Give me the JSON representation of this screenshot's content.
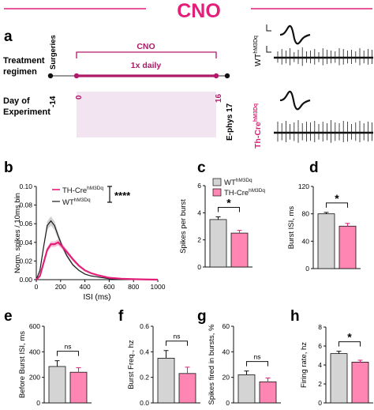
{
  "header": {
    "title": "CNO"
  },
  "colors": {
    "cno": "#e21f79",
    "cno_dark": "#b01869",
    "bar_gray": "#d4d4d4",
    "bar_pink": "#ff86b3",
    "shade": "#f3e4f1",
    "wt_line": "#1a1a1a",
    "th_line": "#e21f79",
    "trace": "#1a1a1a"
  },
  "panel_a": {
    "letter": "a",
    "treatment_label_1": "Treatment",
    "treatment_label_2": "regimen",
    "day_label_1": "Day of",
    "day_label_2": "Experiment",
    "surgeries": "Surgeries",
    "cno_label_1": "CNO",
    "cno_label_2": "1x daily",
    "day_minus14": "-14",
    "day_0": "0",
    "day_16": "16",
    "ephys": "E-phys 17",
    "wt_genotype": "WT",
    "th_genotype": "Th-Cre",
    "superscript": "hM3Dq"
  },
  "chart_data": [
    {
      "panel": "b",
      "type": "line",
      "xlabel": "ISI (ms)",
      "ylabel": "Norm. spikes / 10ms bin",
      "xlim": [
        0,
        1000
      ],
      "ylim": [
        0,
        0.1
      ],
      "xticks": [
        "0",
        "200",
        "400",
        "600",
        "800",
        "1000"
      ],
      "yticks": [
        "0.00",
        "0.02",
        "0.04",
        "0.06",
        "0.08",
        "0.10"
      ],
      "significance": "****",
      "legend": [
        {
          "base": "TH-Cre",
          "sup": "hM3Dq"
        },
        {
          "base": "WT",
          "sup": "hM3Dq"
        }
      ],
      "legend_position": "top-right",
      "series": [
        {
          "name": "TH-Cre hM3Dq",
          "x": [
            0,
            30,
            60,
            90,
            120,
            150,
            180,
            210,
            250,
            300,
            350,
            400,
            450,
            500,
            600,
            700,
            800,
            900,
            1000
          ],
          "y": [
            0.0,
            0.004,
            0.018,
            0.032,
            0.038,
            0.038,
            0.04,
            0.036,
            0.03,
            0.022,
            0.015,
            0.01,
            0.007,
            0.005,
            0.002,
            0.001,
            0.0005,
            0.0002,
            0.0
          ]
        },
        {
          "name": "WT hM3Dq",
          "x": [
            0,
            30,
            60,
            90,
            120,
            150,
            180,
            210,
            250,
            300,
            350,
            400,
            450,
            500,
            600,
            700,
            800,
            900,
            1000
          ],
          "y": [
            0.0,
            0.01,
            0.035,
            0.058,
            0.063,
            0.058,
            0.047,
            0.037,
            0.026,
            0.016,
            0.01,
            0.006,
            0.004,
            0.003,
            0.001,
            0.0005,
            0.0002,
            0.0001,
            0.0
          ]
        }
      ]
    },
    {
      "panel": "c",
      "type": "bar",
      "ylabel": "Spikes per burst",
      "ylim": [
        0,
        6
      ],
      "yticks": [
        "0",
        "2",
        "4",
        "6"
      ],
      "values": [
        3.5,
        2.5
      ],
      "errors": [
        0.2,
        0.2
      ],
      "significance": "*",
      "legend": [
        {
          "base": "WT",
          "sup": "hM3Dq"
        },
        {
          "base": "TH-Cre",
          "sup": "hM3Dq"
        }
      ],
      "legend_position": "top-right"
    },
    {
      "panel": "d",
      "type": "bar",
      "ylabel": "Burst ISI, ms",
      "ylim": [
        0,
        120
      ],
      "yticks": [
        "0",
        "40",
        "80",
        "120"
      ],
      "values": [
        80,
        62
      ],
      "errors": [
        2,
        4
      ],
      "significance": "*"
    },
    {
      "panel": "e",
      "type": "bar",
      "ylabel": "Before Burst ISI, ms",
      "ylim": [
        0,
        600
      ],
      "yticks": [
        "0",
        "200",
        "400",
        "600"
      ],
      "values": [
        285,
        240
      ],
      "errors": [
        45,
        35
      ],
      "significance": "ns"
    },
    {
      "panel": "f",
      "type": "bar",
      "ylabel": "Burst Freq., hz",
      "ylim": [
        0,
        0.6
      ],
      "yticks": [
        "0.0",
        "0.2",
        "0.4",
        "0.6"
      ],
      "values": [
        0.35,
        0.23
      ],
      "errors": [
        0.06,
        0.05
      ],
      "significance": "ns"
    },
    {
      "panel": "g",
      "type": "bar",
      "ylabel": "Spikes fired in bursts, %",
      "ylim": [
        0,
        60
      ],
      "yticks": [
        "0",
        "20",
        "40",
        "60"
      ],
      "values": [
        22,
        16.5
      ],
      "errors": [
        3,
        3
      ],
      "significance": "ns"
    },
    {
      "panel": "h",
      "type": "bar",
      "ylabel": "Firing rate, hz",
      "ylim": [
        0,
        8
      ],
      "yticks": [
        "0",
        "2",
        "4",
        "6",
        "8"
      ],
      "values": [
        5.2,
        4.3
      ],
      "errors": [
        0.25,
        0.2
      ],
      "significance": "*"
    }
  ]
}
